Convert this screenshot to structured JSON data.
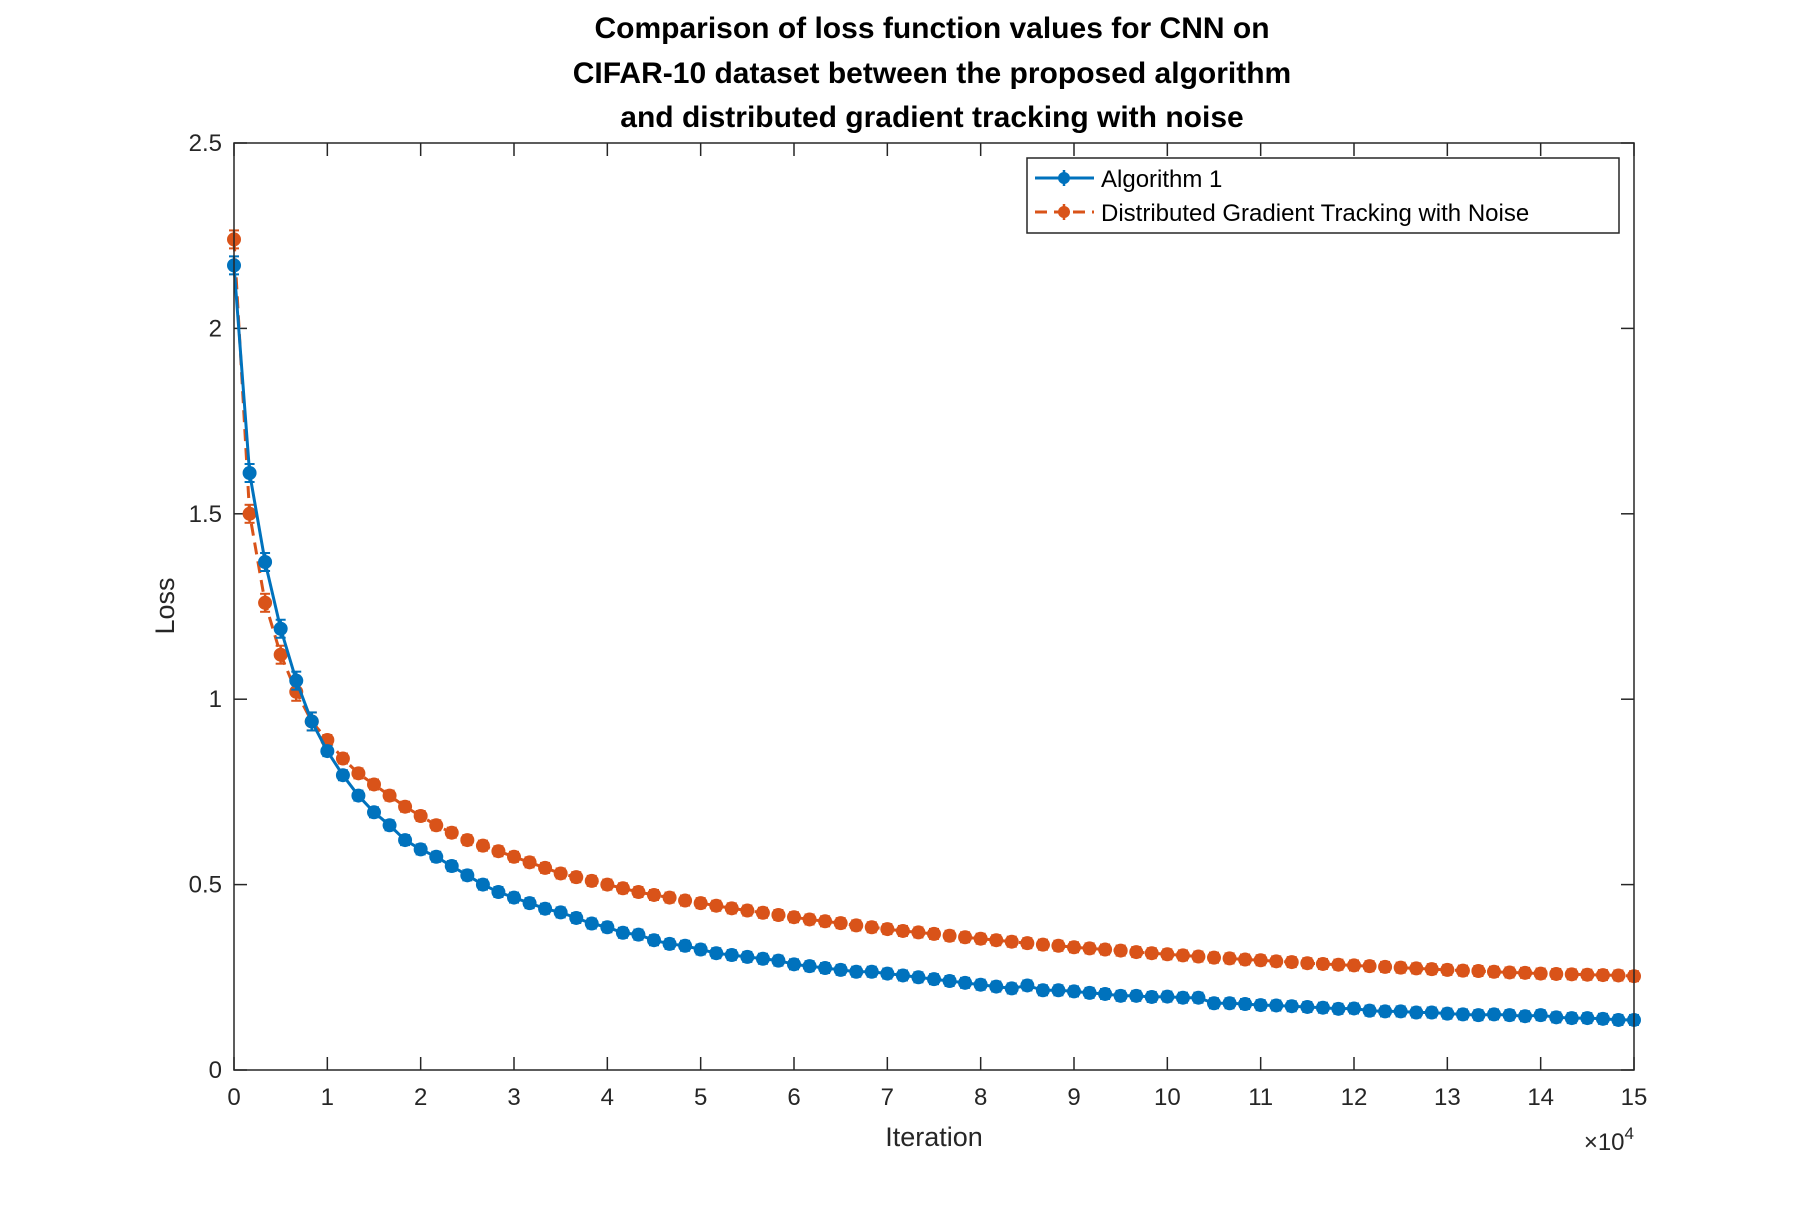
{
  "chart_data": {
    "type": "line",
    "title": [
      "Comparison of loss function values for CNN on",
      "CIFAR-10 dataset between the proposed algorithm",
      "and distributed gradient tracking with noise"
    ],
    "xlabel": "Iteration",
    "ylabel": "Loss",
    "x_exponent_label": "×10",
    "x_exponent_power": "4",
    "xlim": [
      0,
      15
    ],
    "ylim": [
      0,
      2.5
    ],
    "x_unit_multiplier": 10000,
    "xticks": [
      0,
      1,
      2,
      3,
      4,
      5,
      6,
      7,
      8,
      9,
      10,
      11,
      12,
      13,
      14,
      15
    ],
    "xtick_labels": [
      "0",
      "1",
      "2",
      "3",
      "4",
      "5",
      "6",
      "7",
      "8",
      "9",
      "10",
      "11",
      "12",
      "13",
      "14",
      "15"
    ],
    "yticks": [
      0,
      0.5,
      1,
      1.5,
      2,
      2.5
    ],
    "ytick_labels": [
      "0",
      "0.5",
      "1",
      "1.5",
      "2",
      "2.5"
    ],
    "grid": false,
    "legend_position": "top-right",
    "x": [
      0.0,
      0.167,
      0.333,
      0.5,
      0.667,
      0.833,
      1.0,
      1.167,
      1.333,
      1.5,
      1.667,
      1.833,
      2.0,
      2.167,
      2.333,
      2.5,
      2.667,
      2.833,
      3.0,
      3.167,
      3.333,
      3.5,
      3.667,
      3.833,
      4.0,
      4.167,
      4.333,
      4.5,
      4.667,
      4.833,
      5.0,
      5.167,
      5.333,
      5.5,
      5.667,
      5.833,
      6.0,
      6.167,
      6.333,
      6.5,
      6.667,
      6.833,
      7.0,
      7.167,
      7.333,
      7.5,
      7.667,
      7.833,
      8.0,
      8.167,
      8.333,
      8.5,
      8.667,
      8.833,
      9.0,
      9.167,
      9.333,
      9.5,
      9.667,
      9.833,
      10.0,
      10.167,
      10.333,
      10.5,
      10.667,
      10.833,
      11.0,
      11.167,
      11.333,
      11.5,
      11.667,
      11.833,
      12.0,
      12.167,
      12.333,
      12.5,
      12.667,
      12.833,
      13.0,
      13.167,
      13.333,
      13.5,
      13.667,
      13.833,
      14.0,
      14.167,
      14.333,
      14.5,
      14.667,
      14.833,
      15.0
    ],
    "series": [
      {
        "name": "Algorithm 1",
        "color": "#0072BD",
        "line_style": "solid",
        "marker": "circle",
        "values": [
          2.17,
          1.61,
          1.37,
          1.19,
          1.05,
          0.94,
          0.86,
          0.795,
          0.74,
          0.695,
          0.66,
          0.62,
          0.595,
          0.575,
          0.55,
          0.525,
          0.5,
          0.48,
          0.465,
          0.45,
          0.435,
          0.425,
          0.41,
          0.395,
          0.385,
          0.37,
          0.365,
          0.35,
          0.34,
          0.335,
          0.325,
          0.315,
          0.31,
          0.305,
          0.3,
          0.295,
          0.285,
          0.28,
          0.275,
          0.27,
          0.265,
          0.265,
          0.26,
          0.255,
          0.25,
          0.245,
          0.24,
          0.235,
          0.23,
          0.225,
          0.22,
          0.228,
          0.215,
          0.215,
          0.212,
          0.208,
          0.205,
          0.2,
          0.2,
          0.197,
          0.198,
          0.195,
          0.195,
          0.18,
          0.18,
          0.178,
          0.175,
          0.174,
          0.172,
          0.17,
          0.168,
          0.165,
          0.166,
          0.16,
          0.158,
          0.158,
          0.155,
          0.155,
          0.152,
          0.15,
          0.148,
          0.15,
          0.148,
          0.145,
          0.148,
          0.142,
          0.14,
          0.14,
          0.138,
          0.135,
          0.135
        ]
      },
      {
        "name": "Distributed Gradient Tracking with Noise",
        "color": "#D95319",
        "line_style": "dashed",
        "marker": "circle",
        "values": [
          2.24,
          1.5,
          1.26,
          1.12,
          1.02,
          0.94,
          0.89,
          0.84,
          0.8,
          0.77,
          0.74,
          0.71,
          0.685,
          0.66,
          0.64,
          0.62,
          0.605,
          0.59,
          0.575,
          0.56,
          0.545,
          0.53,
          0.52,
          0.51,
          0.5,
          0.49,
          0.48,
          0.472,
          0.465,
          0.457,
          0.45,
          0.443,
          0.436,
          0.43,
          0.424,
          0.418,
          0.412,
          0.406,
          0.401,
          0.396,
          0.39,
          0.385,
          0.38,
          0.375,
          0.371,
          0.367,
          0.362,
          0.358,
          0.354,
          0.35,
          0.346,
          0.342,
          0.338,
          0.335,
          0.331,
          0.328,
          0.325,
          0.322,
          0.318,
          0.315,
          0.312,
          0.309,
          0.306,
          0.303,
          0.301,
          0.298,
          0.296,
          0.293,
          0.291,
          0.288,
          0.286,
          0.284,
          0.282,
          0.28,
          0.278,
          0.276,
          0.274,
          0.272,
          0.27,
          0.268,
          0.267,
          0.265,
          0.263,
          0.262,
          0.26,
          0.259,
          0.258,
          0.257,
          0.256,
          0.255,
          0.253
        ]
      }
    ]
  }
}
